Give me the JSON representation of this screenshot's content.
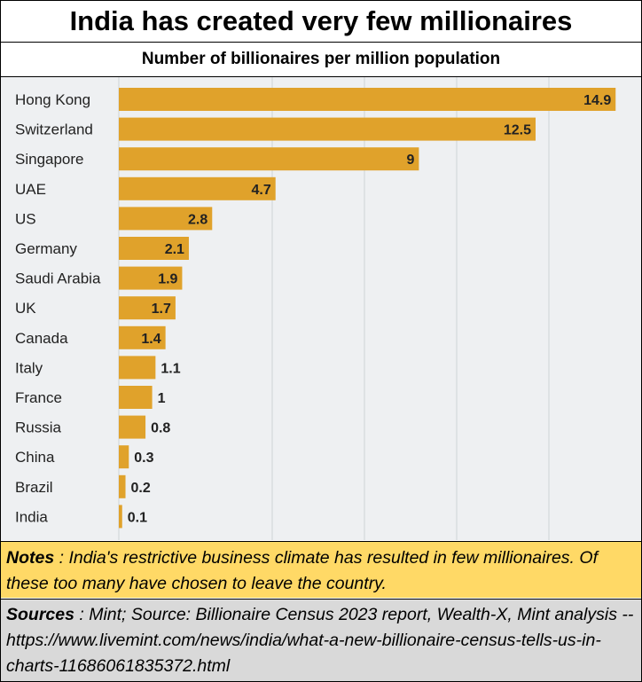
{
  "title": "India has created very few millionaires",
  "subtitle": "Number of billionaires per million population",
  "notes": {
    "label": "Notes",
    "text": " : India's restrictive business climate has resulted in few millionaires. Of these too many have chosen to leave the country."
  },
  "sources": {
    "label": "Sources",
    "text": " : Mint;  Source: Billionaire Census 2023 report, Wealth-X, Mint analysis -- https://www.livemint.com/news/india/what-a-new-billionaire-census-tells-us-in-charts-11686061835372.html"
  },
  "colors": {
    "bar": "#e0a22b",
    "background": "#eef0f2",
    "notes_bg": "#ffd966",
    "sources_bg": "#d9d9d9",
    "gridline": "#cfd3d7"
  },
  "chart_data": {
    "type": "bar",
    "orientation": "horizontal",
    "categories": [
      "Hong Kong",
      "Switzerland",
      "Singapore",
      "UAE",
      "US",
      "Germany",
      "Saudi Arabia",
      "UK",
      "Canada",
      "Italy",
      "France",
      "Russia",
      "China",
      "Brazil",
      "India"
    ],
    "values": [
      14.9,
      12.5,
      9,
      4.7,
      2.8,
      2.1,
      1.9,
      1.7,
      1.4,
      1.1,
      1,
      0.8,
      0.3,
      0.2,
      0.1
    ],
    "value_labels": [
      "14.9",
      "12.5",
      "9",
      "4.7",
      "2.8",
      "2.1",
      "1.9",
      "1.7",
      "1.4",
      "1.1",
      "1",
      "0.8",
      "0.3",
      "0.2",
      "0.1"
    ],
    "xlim": [
      0,
      15
    ],
    "grid": true,
    "legend": "none"
  }
}
